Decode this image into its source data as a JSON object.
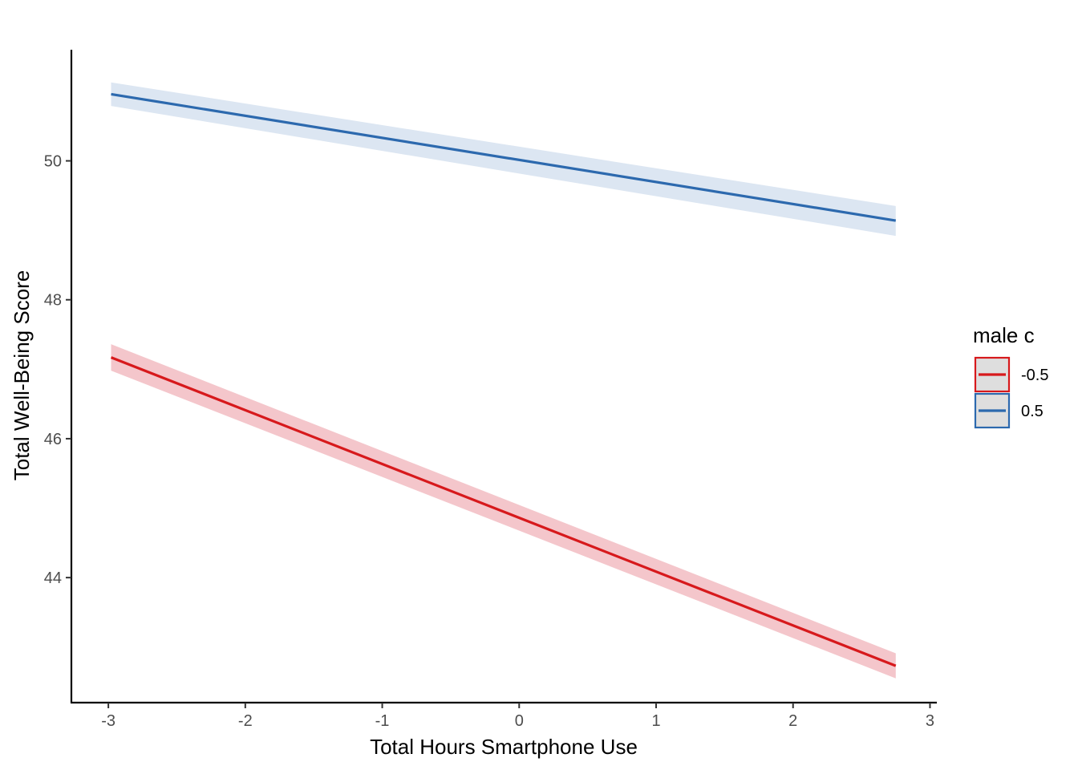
{
  "chart_data": {
    "type": "line",
    "title": "",
    "xlabel": "Total Hours Smartphone Use",
    "ylabel": "Total Well-Being Score",
    "xlim": [
      -3.27,
      3.05
    ],
    "ylim": [
      42.2,
      51.6
    ],
    "xticks": [
      "-3",
      "-2",
      "-1",
      "0",
      "1",
      "2",
      "3"
    ],
    "yticks": [
      "44",
      "46",
      "48",
      "50"
    ],
    "grid": false,
    "legend": {
      "title": "male c",
      "position": "right",
      "entries": [
        "-0.5",
        "0.5"
      ]
    },
    "series": [
      {
        "name": "-0.5",
        "color": "#d7191c",
        "band_color": "#f4c6cb",
        "x": [
          -2.98,
          2.75
        ],
        "y": [
          47.17,
          42.73
        ],
        "lower": [
          46.98,
          42.55
        ],
        "upper": [
          47.36,
          42.91
        ]
      },
      {
        "name": "0.5",
        "color": "#2c69ae",
        "band_color": "#dce6f2",
        "x": [
          -2.98,
          2.75
        ],
        "y": [
          50.96,
          49.14
        ],
        "lower": [
          50.79,
          48.92
        ],
        "upper": [
          51.13,
          49.35
        ]
      }
    ]
  }
}
